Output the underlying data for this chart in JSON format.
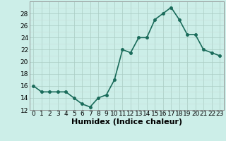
{
  "x": [
    0,
    1,
    2,
    3,
    4,
    5,
    6,
    7,
    8,
    9,
    10,
    11,
    12,
    13,
    14,
    15,
    16,
    17,
    18,
    19,
    20,
    21,
    22,
    23
  ],
  "y": [
    16,
    15,
    15,
    15,
    15,
    14,
    13,
    12.5,
    14,
    14.5,
    17,
    22,
    21.5,
    24,
    24,
    27,
    28,
    29,
    27,
    24.5,
    24.5,
    22,
    21.5,
    21
  ],
  "line_color": "#1a6b5a",
  "marker_color": "#1a6b5a",
  "bg_color": "#cceee8",
  "grid_major_color": "#aaccc4",
  "grid_minor_color": "#c8ddd8",
  "xlabel": "Humidex (Indice chaleur)",
  "ylim": [
    12,
    30
  ],
  "yticks": [
    12,
    14,
    16,
    18,
    20,
    22,
    24,
    26,
    28
  ],
  "xticks": [
    0,
    1,
    2,
    3,
    4,
    5,
    6,
    7,
    8,
    9,
    10,
    11,
    12,
    13,
    14,
    15,
    16,
    17,
    18,
    19,
    20,
    21,
    22,
    23
  ],
  "xtick_labels": [
    "0",
    "1",
    "2",
    "3",
    "4",
    "5",
    "6",
    "7",
    "8",
    "9",
    "10",
    "11",
    "12",
    "13",
    "14",
    "15",
    "16",
    "17",
    "18",
    "19",
    "20",
    "21",
    "22",
    "23"
  ],
  "xlabel_fontsize": 8,
  "tick_fontsize": 6.5,
  "linewidth": 1.2,
  "markersize": 2.5
}
